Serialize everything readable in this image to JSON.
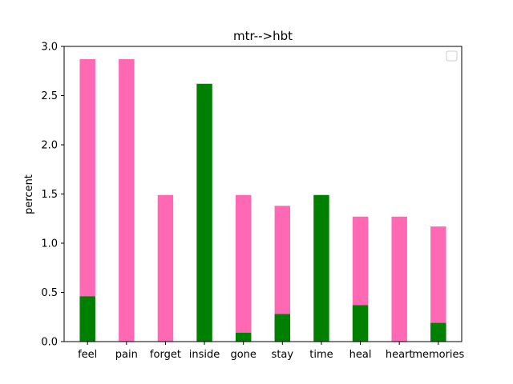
{
  "chart_data": {
    "type": "bar",
    "stacked": false,
    "title": "mtr-->hbt",
    "xlabel": "",
    "ylabel": "percent",
    "ylim": [
      0,
      3.0
    ],
    "yticks": [
      "0.0",
      "0.5",
      "1.0",
      "1.5",
      "2.0",
      "2.5",
      "3.0"
    ],
    "categories": [
      "feel",
      "pain",
      "forget",
      "inside",
      "gone",
      "stay",
      "time",
      "heal",
      "heart",
      "memories"
    ],
    "series": [
      {
        "color": "#ff69b4",
        "values": [
          2.87,
          2.87,
          1.49,
          0,
          1.49,
          1.38,
          0,
          1.27,
          1.27,
          1.17
        ]
      },
      {
        "color": "#008000",
        "values": [
          0.46,
          0,
          0,
          2.62,
          0.09,
          0.28,
          1.49,
          0.37,
          0,
          0.19
        ]
      }
    ],
    "legend": {
      "placement": "top-right",
      "entries": []
    },
    "grid": false
  }
}
